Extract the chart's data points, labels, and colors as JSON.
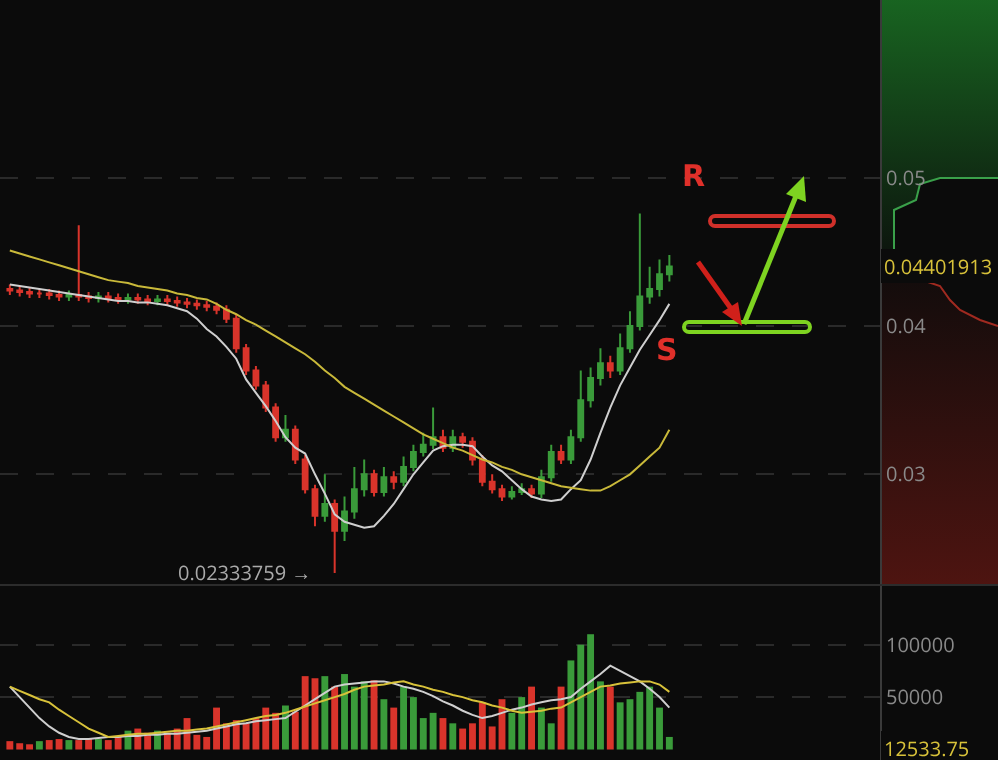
{
  "chart_data": [
    {
      "type": "candlestick",
      "categories": [
        null,
        null,
        null,
        null,
        null,
        null,
        null,
        null,
        null,
        null,
        null,
        null,
        null,
        null,
        null,
        null,
        null,
        null,
        null,
        null,
        null,
        null,
        null,
        null,
        null,
        null,
        null,
        null,
        null,
        null,
        null,
        null,
        null,
        null,
        null,
        null,
        null,
        null,
        null,
        null,
        null,
        null,
        null,
        null,
        null,
        null,
        null,
        null,
        null,
        null,
        null,
        null,
        null,
        null,
        null,
        null,
        null,
        null,
        null,
        null,
        null,
        null,
        null,
        null,
        null,
        null,
        null,
        null
      ],
      "ohlc": [
        [
          0.0425,
          0.0428,
          0.0421,
          0.0424
        ],
        [
          0.0424,
          0.0427,
          0.042,
          0.0423
        ],
        [
          0.0423,
          0.0426,
          0.0419,
          0.0422
        ],
        [
          0.0422,
          0.0425,
          0.0419,
          0.0422
        ],
        [
          0.0422,
          0.0425,
          0.0418,
          0.0421
        ],
        [
          0.0421,
          0.0424,
          0.0417,
          0.042
        ],
        [
          0.042,
          0.0424,
          0.0417,
          0.0421
        ],
        [
          0.0421,
          0.0468,
          0.0417,
          0.042
        ],
        [
          0.042,
          0.0423,
          0.0416,
          0.0419
        ],
        [
          0.0419,
          0.0423,
          0.0416,
          0.042
        ],
        [
          0.042,
          0.0423,
          0.0416,
          0.0419
        ],
        [
          0.0419,
          0.0422,
          0.0415,
          0.0418
        ],
        [
          0.0418,
          0.0422,
          0.0415,
          0.0419
        ],
        [
          0.0419,
          0.0422,
          0.0415,
          0.0418
        ],
        [
          0.0418,
          0.0421,
          0.0414,
          0.0417
        ],
        [
          0.0417,
          0.0421,
          0.0414,
          0.0418
        ],
        [
          0.0418,
          0.0421,
          0.0414,
          0.0417
        ],
        [
          0.0417,
          0.042,
          0.0413,
          0.0416
        ],
        [
          0.0416,
          0.0419,
          0.0412,
          0.0415
        ],
        [
          0.0415,
          0.0418,
          0.0411,
          0.0414
        ],
        [
          0.0414,
          0.0417,
          0.041,
          0.0413
        ],
        [
          0.0413,
          0.0416,
          0.0408,
          0.0411
        ],
        [
          0.0411,
          0.0414,
          0.0402,
          0.0405
        ],
        [
          0.0405,
          0.0408,
          0.0382,
          0.0385
        ],
        [
          0.0385,
          0.0388,
          0.0367,
          0.037
        ],
        [
          0.037,
          0.0373,
          0.0357,
          0.036
        ],
        [
          0.036,
          0.0363,
          0.0342,
          0.0345
        ],
        [
          0.0345,
          0.0348,
          0.0322,
          0.0325
        ],
        [
          0.0325,
          0.034,
          0.0322,
          0.033
        ],
        [
          0.033,
          0.0333,
          0.0307,
          0.031
        ],
        [
          0.031,
          0.0313,
          0.0287,
          0.029
        ],
        [
          0.029,
          0.0293,
          0.0265,
          0.0272
        ],
        [
          0.0272,
          0.03,
          0.0268,
          0.028
        ],
        [
          0.028,
          0.0283,
          0.02333759,
          0.0262
        ],
        [
          0.0262,
          0.0285,
          0.0255,
          0.0275
        ],
        [
          0.0275,
          0.0305,
          0.027,
          0.029
        ],
        [
          0.029,
          0.031,
          0.0285,
          0.03
        ],
        [
          0.03,
          0.0303,
          0.0285,
          0.0288
        ],
        [
          0.0288,
          0.0305,
          0.0285,
          0.0298
        ],
        [
          0.0298,
          0.0302,
          0.029,
          0.0295
        ],
        [
          0.0295,
          0.0312,
          0.0292,
          0.0305
        ],
        [
          0.0305,
          0.032,
          0.0302,
          0.0315
        ],
        [
          0.0315,
          0.0328,
          0.0312,
          0.032
        ],
        [
          0.032,
          0.0345,
          0.0317,
          0.0325
        ],
        [
          0.0325,
          0.033,
          0.0315,
          0.0318
        ],
        [
          0.0318,
          0.033,
          0.0315,
          0.0325
        ],
        [
          0.0325,
          0.0328,
          0.0318,
          0.0322
        ],
        [
          0.0322,
          0.0325,
          0.0306,
          0.031
        ],
        [
          0.031,
          0.0313,
          0.0292,
          0.0295
        ],
        [
          0.0295,
          0.03,
          0.0287,
          0.029
        ],
        [
          0.029,
          0.0293,
          0.0282,
          0.0285
        ],
        [
          0.0285,
          0.0292,
          0.0283,
          0.0288
        ],
        [
          0.0288,
          0.0294,
          0.0286,
          0.029
        ],
        [
          0.029,
          0.0293,
          0.0284,
          0.0287
        ],
        [
          0.0287,
          0.0303,
          0.0284,
          0.0298
        ],
        [
          0.0298,
          0.032,
          0.0295,
          0.0315
        ],
        [
          0.0315,
          0.032,
          0.0307,
          0.031
        ],
        [
          0.031,
          0.033,
          0.0307,
          0.0325
        ],
        [
          0.0325,
          0.037,
          0.0322,
          0.035
        ],
        [
          0.035,
          0.0372,
          0.0345,
          0.0365
        ],
        [
          0.0365,
          0.0385,
          0.036,
          0.0375
        ],
        [
          0.0375,
          0.038,
          0.0365,
          0.037
        ],
        [
          0.037,
          0.0395,
          0.0367,
          0.0385
        ],
        [
          0.0385,
          0.041,
          0.0382,
          0.04
        ],
        [
          0.04,
          0.0476,
          0.0397,
          0.042
        ],
        [
          0.042,
          0.044,
          0.0415,
          0.0425
        ],
        [
          0.0425,
          0.0445,
          0.042,
          0.0435
        ],
        [
          0.0435,
          0.0448,
          0.043,
          0.04401913
        ]
      ],
      "series": [
        {
          "type": "line",
          "color": "#cfcfcf",
          "values": [
            0.0428,
            0.0427,
            0.0426,
            0.0425,
            0.0424,
            0.0423,
            0.0422,
            0.0421,
            0.042,
            0.0419,
            0.0418,
            0.0417,
            0.0417,
            0.0416,
            0.0416,
            0.0415,
            0.0414,
            0.0412,
            0.041,
            0.0405,
            0.0398,
            0.0393,
            0.0386,
            0.0378,
            0.0364,
            0.0355,
            0.0346,
            0.0336,
            0.0325,
            0.0318,
            0.0314,
            0.03,
            0.0287,
            0.0273,
            0.0268,
            0.0266,
            0.0264,
            0.0265,
            0.0272,
            0.028,
            0.029,
            0.03,
            0.0308,
            0.0316,
            0.0319,
            0.032,
            0.032,
            0.0319,
            0.0312,
            0.0306,
            0.0302,
            0.0296,
            0.029,
            0.0285,
            0.0283,
            0.0282,
            0.0283,
            0.029,
            0.0296,
            0.031,
            0.0328,
            0.0345,
            0.036,
            0.0372,
            0.0384,
            0.0394,
            0.0404,
            0.0415
          ]
        },
        {
          "type": "line",
          "color": "#c9b93a",
          "values": [
            0.0451,
            0.0449,
            0.0447,
            0.0445,
            0.0443,
            0.0441,
            0.0439,
            0.0437,
            0.0435,
            0.0433,
            0.0431,
            0.043,
            0.0429,
            0.0427,
            0.0426,
            0.0425,
            0.0424,
            0.0422,
            0.0421,
            0.0419,
            0.0418,
            0.0415,
            0.0411,
            0.0408,
            0.0404,
            0.0401,
            0.0397,
            0.0393,
            0.0389,
            0.0385,
            0.0381,
            0.0376,
            0.037,
            0.0365,
            0.0359,
            0.0355,
            0.0351,
            0.0347,
            0.0343,
            0.0339,
            0.0335,
            0.0331,
            0.0327,
            0.0324,
            0.0321,
            0.0318,
            0.0316,
            0.0313,
            0.031,
            0.0308,
            0.0305,
            0.0303,
            0.03,
            0.0298,
            0.0296,
            0.0294,
            0.0292,
            0.0291,
            0.029,
            0.0289,
            0.0289,
            0.0292,
            0.0296,
            0.03,
            0.0306,
            0.0312,
            0.0318,
            0.033
          ]
        }
      ],
      "ylim": [
        0.0226,
        0.062
      ],
      "yticks": [
        0.03,
        0.04,
        0.05
      ],
      "grid": "y",
      "tick_labels": "y",
      "annotations": [
        "R",
        "S",
        "0.04401913",
        "0.02333759 →"
      ]
    },
    {
      "type": "bar",
      "categories": [
        null,
        null,
        null,
        null,
        null,
        null,
        null,
        null,
        null,
        null,
        null,
        null,
        null,
        null,
        null,
        null,
        null,
        null,
        null,
        null,
        null,
        null,
        null,
        null,
        null,
        null,
        null,
        null,
        null,
        null,
        null,
        null,
        null,
        null,
        null,
        null,
        null,
        null,
        null,
        null,
        null,
        null,
        null,
        null,
        null,
        null,
        null,
        null,
        null,
        null,
        null,
        null,
        null,
        null,
        null,
        null,
        null,
        null,
        null,
        null,
        null,
        null,
        null,
        null,
        null,
        null,
        null,
        null
      ],
      "series": [
        {
          "type": "bar",
          "colors": [
            "#d9342b",
            "#d9342b",
            "#d9342b",
            "#3a9b3a",
            "#d9342b",
            "#d9342b",
            "#3a9b3a",
            "#d9342b",
            "#d9342b",
            "#3a9b3a",
            "#d9342b",
            "#d9342b",
            "#3a9b3a",
            "#d9342b",
            "#d9342b",
            "#3a9b3a",
            "#d9342b",
            "#d9342b",
            "#d9342b",
            "#d9342b",
            "#d9342b",
            "#d9342b",
            "#d9342b",
            "#d9342b",
            "#d9342b",
            "#d9342b",
            "#d9342b",
            "#d9342b",
            "#3a9b3a",
            "#d9342b",
            "#d9342b",
            "#d9342b",
            "#3a9b3a",
            "#d9342b",
            "#3a9b3a",
            "#3a9b3a",
            "#3a9b3a",
            "#d9342b",
            "#3a9b3a",
            "#d9342b",
            "#3a9b3a",
            "#3a9b3a",
            "#3a9b3a",
            "#3a9b3a",
            "#d9342b",
            "#3a9b3a",
            "#d9342b",
            "#d9342b",
            "#d9342b",
            "#d9342b",
            "#d9342b",
            "#3a9b3a",
            "#3a9b3a",
            "#d9342b",
            "#3a9b3a",
            "#3a9b3a",
            "#d9342b",
            "#3a9b3a",
            "#3a9b3a",
            "#3a9b3a",
            "#3a9b3a",
            "#d9342b",
            "#3a9b3a",
            "#3a9b3a",
            "#3a9b3a",
            "#3a9b3a",
            "#3a9b3a",
            "#3a9b3a"
          ],
          "values": [
            8000,
            6000,
            5000,
            8000,
            9000,
            10000,
            9000,
            9000,
            10000,
            10000,
            9000,
            12000,
            18000,
            20000,
            16000,
            18000,
            16000,
            20000,
            30000,
            14000,
            12000,
            40000,
            25000,
            28000,
            25000,
            30000,
            40000,
            35000,
            42000,
            36000,
            70000,
            68000,
            70000,
            60000,
            72000,
            60000,
            65000,
            66000,
            48000,
            40000,
            60000,
            50000,
            30000,
            35000,
            30000,
            25000,
            20000,
            25000,
            45000,
            22000,
            48000,
            35000,
            50000,
            60000,
            40000,
            25000,
            60000,
            85000,
            100000,
            110000,
            65000,
            60000,
            45000,
            48000,
            55000,
            60000,
            40000,
            12000
          ]
        },
        {
          "type": "line",
          "color": "#cfcfcf",
          "values": [
            60000,
            50000,
            40000,
            30000,
            22000,
            16000,
            12000,
            10000,
            10000,
            11000,
            12000,
            12000,
            13000,
            13000,
            14000,
            14000,
            15000,
            15000,
            16000,
            17000,
            18000,
            20000,
            22000,
            24000,
            25000,
            27000,
            28000,
            29000,
            30000,
            36000,
            42000,
            48000,
            54000,
            60000,
            62000,
            63000,
            64000,
            65000,
            65000,
            63000,
            60000,
            58000,
            55000,
            51000,
            46000,
            42000,
            37000,
            33000,
            30000,
            32000,
            35000,
            38000,
            40000,
            43000,
            45000,
            47000,
            48000,
            50000,
            58000,
            65000,
            72000,
            80000,
            75000,
            70000,
            65000,
            58000,
            50000,
            40000
          ]
        },
        {
          "type": "line",
          "color": "#d8c23a",
          "values": [
            60000,
            56000,
            52000,
            48000,
            45000,
            38000,
            32000,
            26000,
            20000,
            16000,
            12000,
            13000,
            14000,
            15000,
            15000,
            16000,
            17000,
            18000,
            18000,
            19000,
            20000,
            22000,
            24000,
            26000,
            28000,
            30000,
            32000,
            33000,
            35000,
            38000,
            41000,
            44000,
            47000,
            50000,
            53000,
            57000,
            60000,
            61000,
            62000,
            64000,
            65000,
            62000,
            60000,
            57000,
            55000,
            52000,
            50000,
            47000,
            45000,
            42000,
            40000,
            37000,
            35000,
            36000,
            37000,
            39000,
            40000,
            45000,
            50000,
            55000,
            60000,
            61000,
            63000,
            64000,
            65000,
            65000,
            62000,
            55000
          ]
        }
      ],
      "ylim": [
        -10000,
        156000
      ],
      "yticks": [
        50000,
        100000
      ],
      "grid": "y",
      "tick_labels": "y",
      "annotations": [
        "12533.75"
      ]
    }
  ]
}
